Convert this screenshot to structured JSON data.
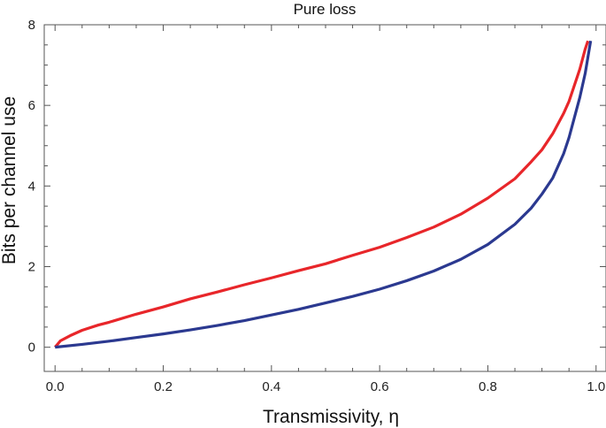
{
  "chart_data": {
    "type": "line",
    "title": "Pure loss",
    "xlabel": "Transmissivity, η",
    "ylabel": "Bits per channel use",
    "xlim": [
      -0.02,
      1.02
    ],
    "ylim": [
      -0.6,
      8.0
    ],
    "x_ticks": [
      "0.0",
      "0.2",
      "0.4",
      "0.6",
      "0.8",
      "1.0"
    ],
    "y_ticks": [
      "0",
      "2",
      "4",
      "6",
      "8"
    ],
    "grid": false,
    "series": [
      {
        "color": "#e8262a",
        "x": [
          0.0,
          0.01,
          0.03,
          0.05,
          0.08,
          0.1,
          0.15,
          0.2,
          0.25,
          0.3,
          0.35,
          0.4,
          0.45,
          0.5,
          0.55,
          0.6,
          0.65,
          0.7,
          0.75,
          0.8,
          0.85,
          0.88,
          0.9,
          0.92,
          0.94,
          0.95,
          0.96,
          0.97,
          0.98,
          0.985
        ],
        "values": [
          0.0,
          0.16,
          0.3,
          0.42,
          0.55,
          0.62,
          0.82,
          1.0,
          1.2,
          1.37,
          1.55,
          1.72,
          1.9,
          2.07,
          2.28,
          2.48,
          2.72,
          2.98,
          3.3,
          3.7,
          4.18,
          4.6,
          4.9,
          5.3,
          5.8,
          6.1,
          6.5,
          6.9,
          7.4,
          7.6
        ]
      },
      {
        "color": "#2b3990",
        "x": [
          0.0,
          0.05,
          0.1,
          0.15,
          0.2,
          0.25,
          0.3,
          0.35,
          0.4,
          0.45,
          0.5,
          0.55,
          0.6,
          0.65,
          0.7,
          0.75,
          0.8,
          0.85,
          0.88,
          0.9,
          0.92,
          0.94,
          0.95,
          0.96,
          0.97,
          0.98,
          0.985,
          0.99
        ],
        "values": [
          0.0,
          0.07,
          0.15,
          0.24,
          0.33,
          0.43,
          0.54,
          0.66,
          0.8,
          0.94,
          1.1,
          1.26,
          1.44,
          1.65,
          1.89,
          2.18,
          2.55,
          3.05,
          3.45,
          3.8,
          4.2,
          4.8,
          5.2,
          5.7,
          6.2,
          6.8,
          7.2,
          7.6
        ]
      }
    ]
  }
}
